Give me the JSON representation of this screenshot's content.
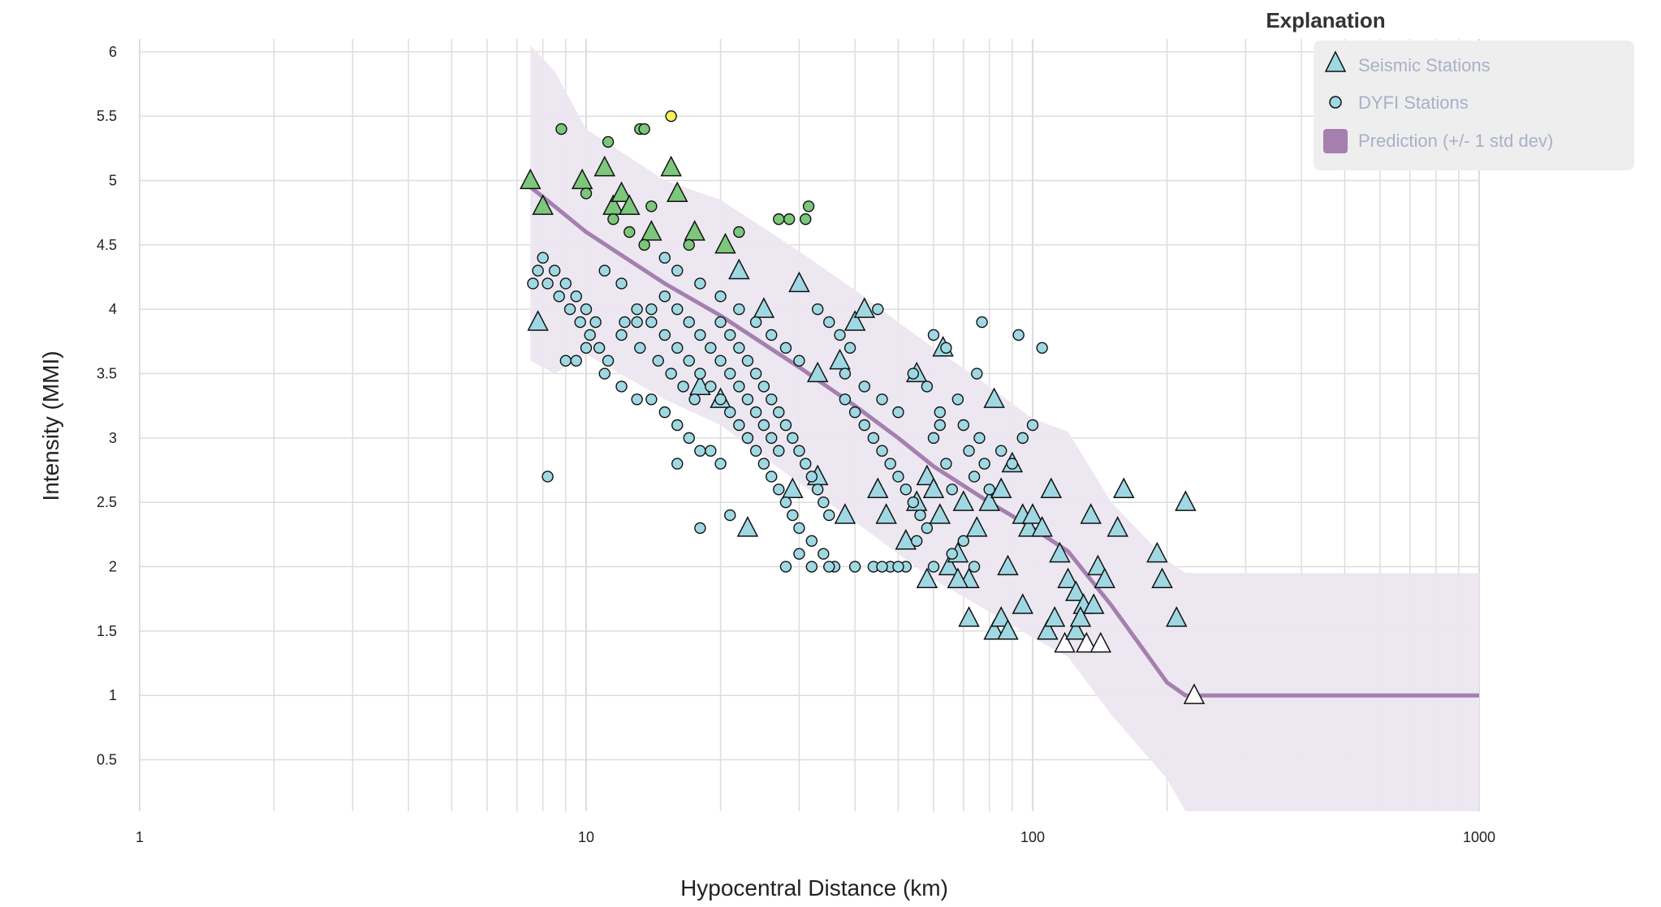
{
  "chart_data": {
    "type": "scatter",
    "x_scale": "log",
    "xlabel": "Hypocentral Distance (km)",
    "ylabel": "Intensity (MMI)",
    "xlim": [
      1,
      1000
    ],
    "ylim": [
      0.1,
      6.1
    ],
    "x_ticks": [
      "1",
      "10",
      "100",
      "1000"
    ],
    "y_ticks": [
      "0.5",
      "1",
      "1.5",
      "2",
      "2.5",
      "3",
      "3.5",
      "4",
      "4.5",
      "5",
      "5.5",
      "6"
    ],
    "grid": true,
    "legend": {
      "title": "Explanation",
      "position": "top-right",
      "items": [
        {
          "label": "Seismic Stations",
          "marker": "triangle"
        },
        {
          "label": "DYFI Stations",
          "marker": "circle"
        },
        {
          "label": "Prediction (+/- 1 std dev)",
          "marker": "band"
        }
      ]
    },
    "colors": {
      "mmi_low": "#ffffff",
      "mmi_weak": "#9fd8e2",
      "mmi_light": "#7cc77b",
      "mmi_moderate": "#f6f05a",
      "prediction_line": "#a57fb0",
      "prediction_band": "#ebe6ef",
      "legend_bg": "#eeeeee",
      "grid": "#dddddd"
    },
    "prediction": {
      "x": [
        7.5,
        8.5,
        10,
        15,
        20,
        30,
        40,
        50,
        60,
        80,
        100,
        120,
        150,
        200,
        220,
        300,
        500,
        1000
      ],
      "y": [
        4.95,
        4.8,
        4.6,
        4.2,
        3.95,
        3.55,
        3.25,
        3.0,
        2.78,
        2.5,
        2.3,
        2.12,
        1.7,
        1.1,
        1.0,
        1.0,
        1.0,
        1.0
      ],
      "upper": [
        6.05,
        5.85,
        5.4,
        5.0,
        4.85,
        4.45,
        4.15,
        3.9,
        3.7,
        3.4,
        3.15,
        3.05,
        2.5,
        2.05,
        1.95,
        1.95,
        1.95,
        1.95
      ],
      "lower": [
        3.6,
        3.5,
        3.65,
        3.3,
        3.1,
        2.65,
        2.35,
        2.1,
        1.9,
        1.65,
        1.45,
        1.3,
        0.85,
        0.35,
        0.1,
        0.1,
        0.1,
        0.1
      ]
    },
    "series": [
      {
        "name": "Seismic Stations",
        "marker": "triangle",
        "points": [
          [
            7.5,
            5.0
          ],
          [
            8,
            4.8
          ],
          [
            7.8,
            3.9
          ],
          [
            9.8,
            5.0
          ],
          [
            11,
            5.1
          ],
          [
            11.5,
            4.8
          ],
          [
            12,
            4.9
          ],
          [
            12.5,
            4.8
          ],
          [
            14,
            4.6
          ],
          [
            15.5,
            5.1
          ],
          [
            16,
            4.9
          ],
          [
            17.5,
            4.6
          ],
          [
            20.5,
            4.5
          ],
          [
            22,
            4.3
          ],
          [
            25,
            4.0
          ],
          [
            30,
            4.2
          ],
          [
            33,
            3.5
          ],
          [
            37,
            3.6
          ],
          [
            40,
            3.9
          ],
          [
            42,
            4.0
          ],
          [
            55,
            3.5
          ],
          [
            63,
            3.7
          ],
          [
            82,
            3.3
          ],
          [
            18,
            3.4
          ],
          [
            20,
            3.3
          ],
          [
            23,
            2.3
          ],
          [
            29,
            2.6
          ],
          [
            33,
            2.7
          ],
          [
            38,
            2.4
          ],
          [
            45,
            2.6
          ],
          [
            47,
            2.4
          ],
          [
            52,
            2.2
          ],
          [
            55,
            2.5
          ],
          [
            58,
            2.7
          ],
          [
            60,
            2.6
          ],
          [
            62,
            2.4
          ],
          [
            65,
            2.0
          ],
          [
            68,
            2.1
          ],
          [
            70,
            2.5
          ],
          [
            72,
            1.9
          ],
          [
            75,
            2.3
          ],
          [
            80,
            2.5
          ],
          [
            85,
            2.6
          ],
          [
            88,
            2.0
          ],
          [
            90,
            2.8
          ],
          [
            95,
            2.4
          ],
          [
            98,
            2.3
          ],
          [
            100,
            2.4
          ],
          [
            105,
            2.3
          ],
          [
            110,
            2.6
          ],
          [
            115,
            2.1
          ],
          [
            120,
            1.9
          ],
          [
            125,
            1.8
          ],
          [
            130,
            1.7
          ],
          [
            135,
            2.4
          ],
          [
            140,
            2.0
          ],
          [
            145,
            1.9
          ],
          [
            155,
            2.3
          ],
          [
            160,
            2.6
          ],
          [
            190,
            2.1
          ],
          [
            195,
            1.9
          ],
          [
            210,
            1.6
          ],
          [
            220,
            2.5
          ],
          [
            230,
            1.0
          ],
          [
            58,
            1.9
          ],
          [
            68,
            1.9
          ],
          [
            72,
            1.6
          ],
          [
            82,
            1.5
          ],
          [
            85,
            1.6
          ],
          [
            88,
            1.5
          ],
          [
            95,
            1.7
          ],
          [
            108,
            1.5
          ],
          [
            112,
            1.6
          ],
          [
            118,
            1.4
          ],
          [
            125,
            1.5
          ],
          [
            128,
            1.6
          ],
          [
            132,
            1.4
          ],
          [
            137,
            1.7
          ],
          [
            142,
            1.4
          ]
        ]
      },
      {
        "name": "DYFI Stations",
        "marker": "circle",
        "points": [
          [
            8.8,
            5.4
          ],
          [
            11.2,
            5.3
          ],
          [
            13.2,
            5.4
          ],
          [
            13.5,
            5.4
          ],
          [
            15.5,
            5.5
          ],
          [
            27,
            4.7
          ],
          [
            28.5,
            4.7
          ],
          [
            31,
            4.7
          ],
          [
            31.5,
            4.8
          ],
          [
            22,
            4.6
          ],
          [
            8.2,
            2.7
          ],
          [
            16,
            2.8
          ],
          [
            18,
            2.3
          ],
          [
            21,
            2.4
          ],
          [
            10,
            4.9
          ],
          [
            11.5,
            4.7
          ],
          [
            12.5,
            4.6
          ],
          [
            13.5,
            4.5
          ],
          [
            14,
            4.8
          ],
          [
            15,
            4.4
          ],
          [
            16,
            4.3
          ],
          [
            17,
            4.5
          ],
          [
            18,
            4.2
          ],
          [
            20,
            4.1
          ],
          [
            22,
            4.0
          ],
          [
            24,
            3.9
          ],
          [
            26,
            3.8
          ],
          [
            28,
            3.7
          ],
          [
            30,
            3.6
          ],
          [
            8,
            4.4
          ],
          [
            8.5,
            4.3
          ],
          [
            9,
            4.2
          ],
          [
            9.5,
            4.1
          ],
          [
            10,
            4.0
          ],
          [
            10.5,
            3.9
          ],
          [
            11,
            4.3
          ],
          [
            12,
            4.2
          ],
          [
            13,
            4.0
          ],
          [
            14,
            3.9
          ],
          [
            15,
            3.8
          ],
          [
            16,
            3.7
          ],
          [
            17,
            3.6
          ],
          [
            18,
            3.5
          ],
          [
            19,
            3.4
          ],
          [
            20,
            3.3
          ],
          [
            21,
            3.2
          ],
          [
            22,
            3.1
          ],
          [
            23,
            3.0
          ],
          [
            24,
            2.9
          ],
          [
            25,
            2.8
          ],
          [
            26,
            2.7
          ],
          [
            27,
            2.6
          ],
          [
            28,
            2.5
          ],
          [
            29,
            2.4
          ],
          [
            30,
            2.3
          ],
          [
            32,
            2.2
          ],
          [
            34,
            2.1
          ],
          [
            36,
            2.0
          ],
          [
            38,
            3.3
          ],
          [
            40,
            3.2
          ],
          [
            42,
            3.1
          ],
          [
            44,
            3.0
          ],
          [
            46,
            2.9
          ],
          [
            48,
            2.8
          ],
          [
            50,
            2.7
          ],
          [
            52,
            2.6
          ],
          [
            54,
            2.5
          ],
          [
            56,
            2.4
          ],
          [
            58,
            2.3
          ],
          [
            60,
            3.0
          ],
          [
            62,
            3.1
          ],
          [
            64,
            2.8
          ],
          [
            66,
            2.6
          ],
          [
            68,
            3.3
          ],
          [
            70,
            3.1
          ],
          [
            72,
            2.9
          ],
          [
            74,
            2.7
          ],
          [
            76,
            3.0
          ],
          [
            78,
            2.8
          ],
          [
            80,
            2.6
          ],
          [
            85,
            2.9
          ],
          [
            90,
            2.8
          ],
          [
            95,
            3.0
          ],
          [
            100,
            3.1
          ],
          [
            60,
            3.8
          ],
          [
            77,
            3.9
          ],
          [
            93,
            3.8
          ],
          [
            105,
            3.7
          ],
          [
            75,
            3.5
          ],
          [
            64,
            3.7
          ],
          [
            33,
            4.0
          ],
          [
            35,
            3.9
          ],
          [
            37,
            3.8
          ],
          [
            39,
            3.7
          ],
          [
            45,
            4.0
          ],
          [
            38,
            3.5
          ],
          [
            42,
            3.4
          ],
          [
            46,
            3.3
          ],
          [
            50,
            3.2
          ],
          [
            54,
            3.5
          ],
          [
            58,
            3.4
          ],
          [
            62,
            3.2
          ],
          [
            44,
            2.0
          ],
          [
            48,
            2.0
          ],
          [
            52,
            2.0
          ],
          [
            28,
            2.0
          ],
          [
            30,
            2.1
          ],
          [
            32,
            2.0
          ],
          [
            35,
            2.0
          ],
          [
            40,
            2.0
          ],
          [
            46,
            2.0
          ],
          [
            50,
            2.0
          ],
          [
            55,
            2.2
          ],
          [
            60,
            2.0
          ],
          [
            66,
            2.1
          ],
          [
            70,
            2.2
          ],
          [
            74,
            2.0
          ],
          [
            9,
            3.6
          ],
          [
            9.5,
            3.6
          ],
          [
            10,
            3.7
          ],
          [
            11,
            3.5
          ],
          [
            12,
            3.4
          ],
          [
            13,
            3.3
          ],
          [
            14,
            3.3
          ],
          [
            15,
            3.2
          ],
          [
            16,
            3.1
          ],
          [
            17,
            3.0
          ],
          [
            18,
            2.9
          ],
          [
            19,
            2.9
          ],
          [
            20,
            2.8
          ],
          [
            12,
            3.8
          ],
          [
            13,
            3.9
          ],
          [
            14,
            4.0
          ],
          [
            15,
            4.1
          ],
          [
            16,
            4.0
          ],
          [
            17,
            3.9
          ],
          [
            18,
            3.8
          ],
          [
            19,
            3.7
          ],
          [
            20,
            3.6
          ],
          [
            21,
            3.5
          ],
          [
            22,
            3.4
          ],
          [
            23,
            3.3
          ],
          [
            24,
            3.2
          ],
          [
            25,
            3.1
          ],
          [
            26,
            3.0
          ],
          [
            27,
            2.9
          ],
          [
            7.6,
            4.2
          ],
          [
            7.8,
            4.3
          ],
          [
            8.2,
            4.2
          ],
          [
            8.7,
            4.1
          ],
          [
            9.2,
            4.0
          ],
          [
            9.7,
            3.9
          ],
          [
            10.2,
            3.8
          ],
          [
            10.7,
            3.7
          ],
          [
            11.2,
            3.6
          ],
          [
            12.2,
            3.9
          ],
          [
            13.2,
            3.7
          ],
          [
            14.5,
            3.6
          ],
          [
            15.5,
            3.5
          ],
          [
            16.5,
            3.4
          ],
          [
            17.5,
            3.3
          ],
          [
            20,
            3.9
          ],
          [
            21,
            3.8
          ],
          [
            22,
            3.7
          ],
          [
            23,
            3.6
          ],
          [
            24,
            3.5
          ],
          [
            25,
            3.4
          ],
          [
            26,
            3.3
          ],
          [
            27,
            3.2
          ],
          [
            28,
            3.1
          ],
          [
            29,
            3.0
          ],
          [
            30,
            2.9
          ],
          [
            31,
            2.8
          ],
          [
            32,
            2.7
          ],
          [
            33,
            2.6
          ],
          [
            34,
            2.5
          ],
          [
            35,
            2.4
          ]
        ]
      }
    ]
  }
}
